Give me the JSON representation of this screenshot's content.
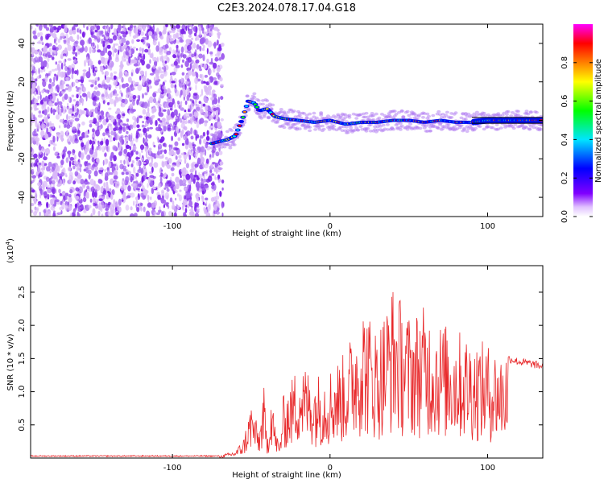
{
  "title": "C2E3.2024.078.17.04.G18",
  "colors": {
    "snr_line": "#e8282a",
    "spectrogram_noise": "#8a2be2",
    "axis": "#000000"
  },
  "chart_data": [
    {
      "type": "heatmap",
      "name": "spectrogram",
      "xlabel": "Height of straight line (km)",
      "ylabel": "Frequency (Hz)",
      "xlim": [
        -190,
        135
      ],
      "ylim": [
        -50,
        50
      ],
      "x_ticks": [
        -100,
        0,
        100
      ],
      "y_ticks": [
        -40,
        -20,
        0,
        20,
        40
      ],
      "noise_region_x": [
        -190,
        -68
      ],
      "signal_track": {
        "x": [
          -75,
          -65,
          -60,
          -55,
          -52,
          -48,
          -45,
          -40,
          -35,
          -30,
          -20,
          -10,
          0,
          10,
          20,
          30,
          40,
          50,
          60,
          70,
          80,
          90,
          100,
          110,
          120,
          135
        ],
        "y": [
          -12,
          -10,
          -8,
          2,
          10,
          9,
          5,
          6,
          2,
          1,
          0,
          -1,
          0,
          -2,
          -1,
          -1,
          0,
          0,
          -1,
          0,
          -1,
          -1,
          0,
          0,
          0,
          0
        ]
      },
      "colorbar": {
        "label": "Normalized spectral amplitude",
        "range": [
          0.0,
          1.0
        ],
        "ticks": [
          0.0,
          0.2,
          0.4,
          0.6,
          0.8
        ],
        "tick_labels": [
          "0.0",
          "0.2",
          "0.4",
          "0.6",
          "0.8"
        ],
        "colors": [
          "#ffffff",
          "#8000ff",
          "#0000ff",
          "#00ffff",
          "#00ff00",
          "#ffff00",
          "#ff8000",
          "#ff0000",
          "#ff00ff"
        ]
      }
    },
    {
      "type": "line",
      "name": "snr",
      "xlabel": "Height of straight line (km)",
      "ylabel": "SNR (10 * v/v)",
      "y_multiplier_label": "(x10",
      "y_multiplier_exp": "4",
      "y_multiplier_close": ")",
      "xlim": [
        -190,
        135
      ],
      "ylim": [
        0,
        29000
      ],
      "x_ticks": [
        -100,
        0,
        100
      ],
      "y_ticks": [
        5000,
        10000,
        15000,
        20000,
        25000
      ],
      "y_tick_labels": [
        "0.5",
        "1.0",
        "1.5",
        "2.0",
        "2.5"
      ],
      "series": [
        {
          "x": [
            -190,
            -150,
            -100,
            -70,
            -60,
            -55,
            -50,
            -45,
            -42,
            -40,
            -37,
            -35,
            -32,
            -30,
            -25,
            -20,
            -10,
            0,
            10,
            20,
            30,
            40,
            50,
            60,
            70,
            80,
            90,
            100,
            110,
            113,
            120,
            128,
            135
          ],
          "y": [
            300,
            300,
            300,
            300,
            1000,
            2500,
            7500,
            3500,
            9500,
            2000,
            11000,
            4500,
            1500,
            8000,
            10000,
            13000,
            11000,
            12000,
            14000,
            21000,
            17000,
            23000,
            19000,
            20000,
            18000,
            17000,
            16000,
            15000,
            14000,
            15000,
            14500,
            14200,
            13800
          ]
        }
      ]
    }
  ]
}
